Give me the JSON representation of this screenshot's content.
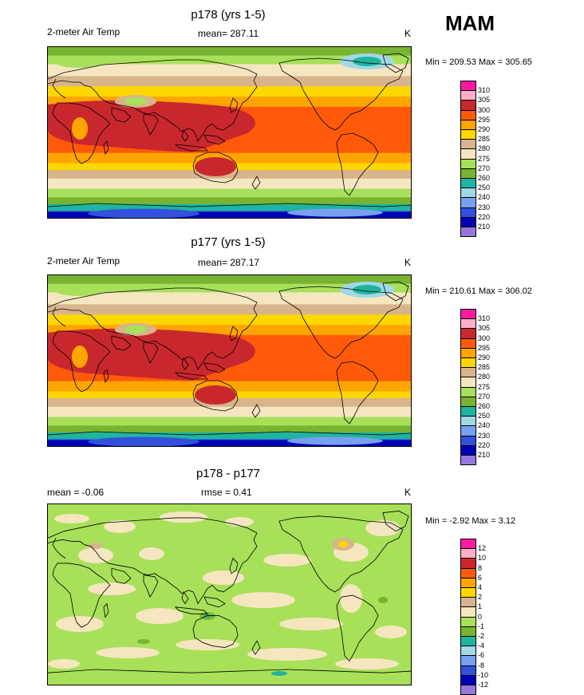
{
  "season": "MAM",
  "panels": [
    {
      "title": "p178 (yrs 1-5)",
      "left_label": "2-meter Air Temp",
      "center_label": "mean= 287.11",
      "right_label": "K",
      "minmax": "Min = 209.53 Max = 305.65",
      "kind": "temp",
      "legend": {
        "labels": [
          "310",
          "305",
          "300",
          "295",
          "290",
          "285",
          "280",
          "275",
          "270",
          "260",
          "250",
          "240",
          "230",
          "220",
          "210"
        ],
        "colors": [
          "#ff1aa0",
          "#ffb0c8",
          "#c8282d",
          "#ff5a0a",
          "#ffa500",
          "#ffd700",
          "#d8b48c",
          "#f5e6c0",
          "#a8e05a",
          "#78b432",
          "#1eb4a0",
          "#a0d8e6",
          "#78a0f0",
          "#3250dc",
          "#0000b4",
          "#9678dc"
        ]
      }
    },
    {
      "title": "p177 (yrs 1-5)",
      "left_label": "2-meter Air Temp",
      "center_label": "mean= 287.17",
      "right_label": "K",
      "minmax": "Min = 210.61 Max = 306.02",
      "kind": "temp",
      "legend": {
        "labels": [
          "310",
          "305",
          "300",
          "295",
          "290",
          "285",
          "280",
          "275",
          "270",
          "260",
          "250",
          "240",
          "230",
          "220",
          "210"
        ],
        "colors": [
          "#ff1aa0",
          "#ffb0c8",
          "#c8282d",
          "#ff5a0a",
          "#ffa500",
          "#ffd700",
          "#d8b48c",
          "#f5e6c0",
          "#a8e05a",
          "#78b432",
          "#1eb4a0",
          "#a0d8e6",
          "#78a0f0",
          "#3250dc",
          "#0000b4",
          "#9678dc"
        ]
      }
    },
    {
      "title": "p178 - p177",
      "left_label": "mean =  -0.06",
      "center_label": "rmse =   0.41",
      "right_label": "K",
      "minmax": "Min =  -2.92 Max =   3.12",
      "kind": "diff",
      "legend": {
        "labels": [
          "12",
          "10",
          "8",
          "6",
          "4",
          "2",
          "1",
          "0",
          "-1",
          "-2",
          "-4",
          "-6",
          "-8",
          "-10",
          "-12"
        ],
        "colors": [
          "#ff1aa0",
          "#ffb0c8",
          "#c8282d",
          "#ff5a0a",
          "#ffa500",
          "#ffd700",
          "#d8b48c",
          "#f5e6c0",
          "#a8e05a",
          "#78b432",
          "#1eb4a0",
          "#a0d8e6",
          "#78a0f0",
          "#3250dc",
          "#0000b4",
          "#9678dc"
        ]
      }
    }
  ]
}
